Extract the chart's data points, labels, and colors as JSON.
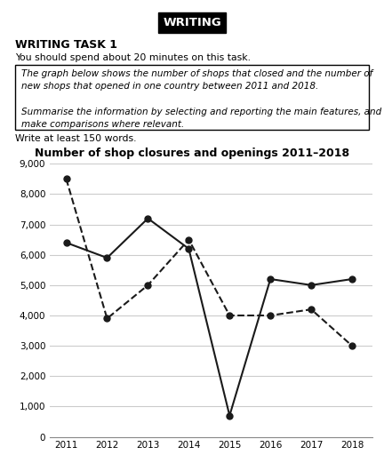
{
  "years": [
    2011,
    2012,
    2013,
    2014,
    2015,
    2016,
    2017,
    2018
  ],
  "closures": [
    6400,
    5900,
    7200,
    6200,
    700,
    5200,
    5000,
    5200
  ],
  "openings": [
    8500,
    3900,
    5000,
    6500,
    4000,
    4000,
    4200,
    3000
  ],
  "chart_title": "Number of shop closures and openings 2011–2018",
  "ylim": [
    0,
    9000
  ],
  "yticks": [
    0,
    1000,
    2000,
    3000,
    4000,
    5000,
    6000,
    7000,
    8000,
    9000
  ],
  "ytick_labels": [
    "0",
    "1,000",
    "2,000",
    "3,000",
    "4,000",
    "5,000",
    "6,000",
    "7,000",
    "8,000",
    "9,000"
  ],
  "header_text": "WRITING",
  "task_title": "WRITING TASK 1",
  "task_time": "You should spend about 20 minutes on this task.",
  "box_text": "The graph below shows the number of shops that closed and the number of\nnew shops that opened in one country between 2011 and 2018.\n\nSummarise the information by selecting and reporting the main features, and\nmake comparisons where relevant.",
  "footer_text": "Write at least 150 words.",
  "line_color": "#1a1a1a",
  "grid_color": "#cccccc",
  "background_color": "#ffffff"
}
